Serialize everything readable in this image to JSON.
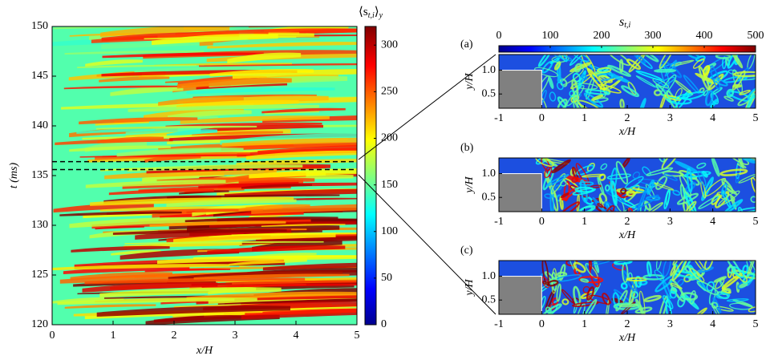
{
  "chart_data": [
    {
      "type": "heatmap",
      "xlabel": "x/H",
      "ylabel": "t (ms)",
      "xlim": [
        0,
        5
      ],
      "ylim": [
        120,
        150
      ],
      "xticks": [
        0,
        1,
        2,
        3,
        4,
        5
      ],
      "yticks": [
        120,
        125,
        130,
        135,
        140,
        145,
        150
      ],
      "marker_lines": [
        135.6,
        136.4
      ],
      "colorbar": {
        "label": [
          "⟨s",
          "t,i",
          "⟩",
          "y"
        ],
        "lim": [
          0,
          320
        ],
        "ticks": [
          0,
          50,
          100,
          150,
          200,
          250,
          300
        ]
      }
    },
    {
      "type": "heatmap-panels",
      "xlabel": "x/H",
      "ylabel": "y/H",
      "xlim": [
        -1,
        5
      ],
      "ylim": [
        0.2,
        1.33
      ],
      "xticks": [
        -1,
        0,
        1,
        2,
        3,
        4,
        5
      ],
      "yticks": [
        0.5,
        {
          "value": 1,
          "label": "1.0"
        }
      ],
      "obstacle": {
        "x": [
          -1,
          0
        ],
        "height": 1
      },
      "panels": [
        "(a)",
        "(b)",
        "(c)"
      ],
      "colorbar": {
        "label": [
          "s",
          "t,i"
        ],
        "lim": [
          0,
          500
        ],
        "ticks": [
          0,
          100,
          200,
          300,
          400,
          500
        ]
      }
    }
  ]
}
